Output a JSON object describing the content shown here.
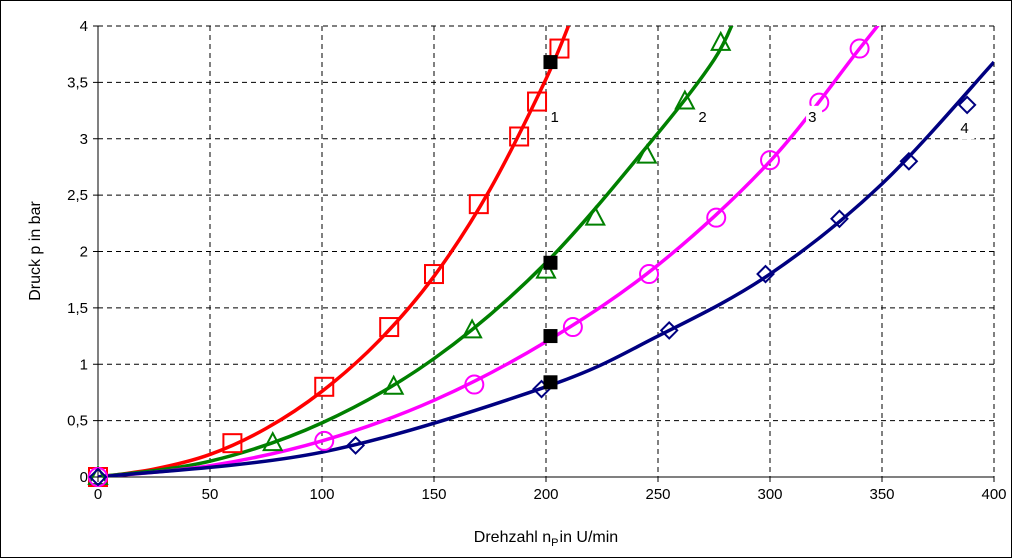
{
  "chart_data": {
    "type": "line",
    "title": "",
    "xlabel": "Drehzahl n",
    "xlabel_sub": "P",
    "xlabel_rest": "in U/min",
    "ylabel": "Druck p in bar",
    "xlim": [
      0,
      400
    ],
    "ylim": [
      0,
      4
    ],
    "xticks": [
      0,
      50,
      100,
      150,
      200,
      250,
      300,
      350,
      400
    ],
    "yticks": [
      "0",
      "0,5",
      "1",
      "1,5",
      "2",
      "2,5",
      "3",
      "3,5",
      "4"
    ],
    "yticks_values": [
      0,
      0.5,
      1,
      1.5,
      2,
      2.5,
      3,
      3.5,
      4
    ],
    "grid": true,
    "series": [
      {
        "name": "1",
        "color": "#ff0000",
        "marker": "square",
        "points": [
          [
            0,
            0
          ],
          [
            60,
            0.3
          ],
          [
            101,
            0.8
          ],
          [
            130,
            1.33
          ],
          [
            150,
            1.8
          ],
          [
            170,
            2.42
          ],
          [
            188,
            3.02
          ],
          [
            196,
            3.33
          ],
          [
            206,
            3.8
          ]
        ],
        "curve": [
          [
            0,
            0
          ],
          [
            25,
            0.07
          ],
          [
            50,
            0.2
          ],
          [
            75,
            0.43
          ],
          [
            100,
            0.76
          ],
          [
            125,
            1.2
          ],
          [
            150,
            1.78
          ],
          [
            175,
            2.55
          ],
          [
            200,
            3.53
          ],
          [
            212,
            4.1
          ]
        ]
      },
      {
        "name": "2",
        "color": "#008000",
        "marker": "triangle",
        "points": [
          [
            0,
            0
          ],
          [
            78,
            0.3
          ],
          [
            132,
            0.8
          ],
          [
            167,
            1.3
          ],
          [
            200,
            1.83
          ],
          [
            222,
            2.3
          ],
          [
            245,
            2.85
          ],
          [
            262,
            3.33
          ],
          [
            278,
            3.85
          ]
        ],
        "curve": [
          [
            0,
            0
          ],
          [
            50,
            0.14
          ],
          [
            100,
            0.48
          ],
          [
            150,
            1.05
          ],
          [
            200,
            1.9
          ],
          [
            250,
            3.05
          ],
          [
            275,
            3.7
          ],
          [
            285,
            4.1
          ]
        ]
      },
      {
        "name": "3",
        "color": "#ff00ff",
        "marker": "circle",
        "points": [
          [
            0,
            0
          ],
          [
            101,
            0.32
          ],
          [
            168,
            0.82
          ],
          [
            212,
            1.33
          ],
          [
            246,
            1.8
          ],
          [
            276,
            2.3
          ],
          [
            300,
            2.81
          ],
          [
            322,
            3.32
          ],
          [
            340,
            3.8
          ]
        ],
        "curve": [
          [
            0,
            0
          ],
          [
            50,
            0.1
          ],
          [
            100,
            0.32
          ],
          [
            150,
            0.68
          ],
          [
            200,
            1.2
          ],
          [
            250,
            1.88
          ],
          [
            300,
            2.8
          ],
          [
            340,
            3.8
          ],
          [
            352,
            4.1
          ]
        ]
      },
      {
        "name": "4",
        "color": "#000080",
        "marker": "diamond",
        "points": [
          [
            0,
            0
          ],
          [
            115,
            0.28
          ],
          [
            198,
            0.78
          ],
          [
            255,
            1.3
          ],
          [
            298,
            1.8
          ],
          [
            331,
            2.29
          ],
          [
            362,
            2.8
          ],
          [
            388,
            3.3
          ]
        ],
        "curve": [
          [
            0,
            0
          ],
          [
            100,
            0.22
          ],
          [
            200,
            0.8
          ],
          [
            250,
            1.25
          ],
          [
            300,
            1.8
          ],
          [
            350,
            2.6
          ],
          [
            400,
            3.68
          ]
        ]
      }
    ],
    "operating_points": {
      "marker": "filled-square",
      "color": "#000000",
      "points": [
        [
          202,
          3.68
        ],
        [
          202,
          1.9
        ],
        [
          202,
          1.25
        ],
        [
          202,
          0.84
        ]
      ]
    },
    "curve_labels": [
      {
        "text": "1",
        "x": 202,
        "y": 3.15
      },
      {
        "text": "2",
        "x": 268,
        "y": 3.15
      },
      {
        "text": "3",
        "x": 317,
        "y": 3.15
      },
      {
        "text": "4",
        "x": 385,
        "y": 3.05
      }
    ]
  }
}
